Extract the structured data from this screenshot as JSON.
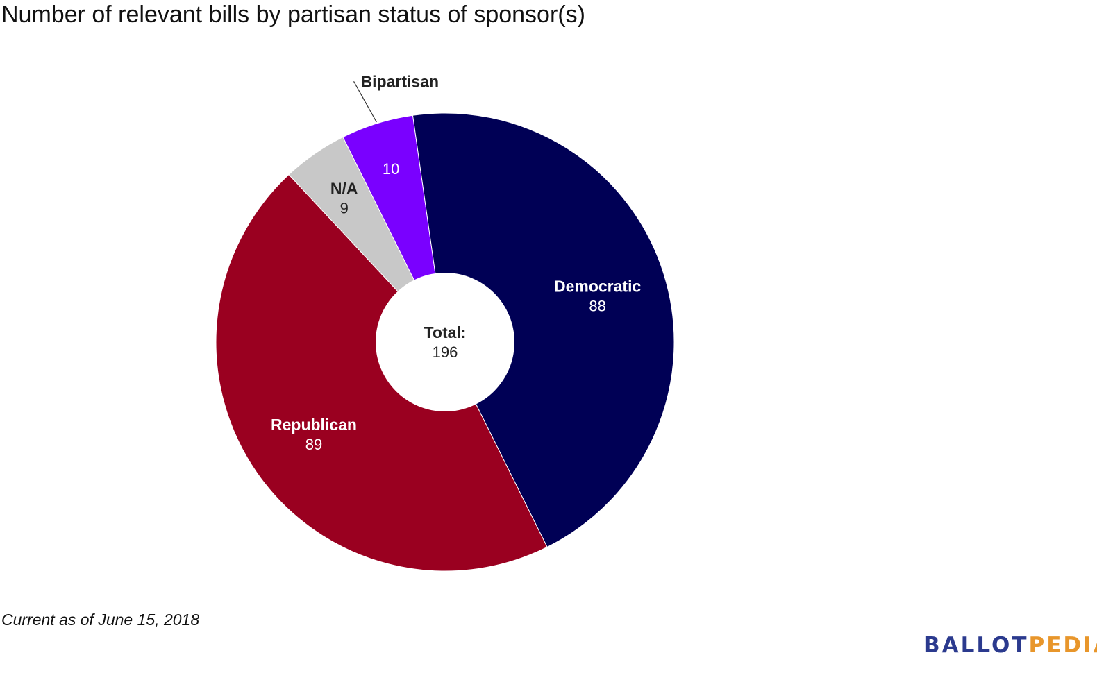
{
  "title": "Number of relevant bills by partisan status of sponsor(s)",
  "footnote": "Current as of June 15, 2018",
  "logo": {
    "part1": "BALLOT",
    "part2": "PEDIA"
  },
  "colors": {
    "republican": "#9a0020",
    "na": "#c8c8c8",
    "bipartisan": "#7a00ff",
    "democratic": "#000055"
  },
  "chart_data": {
    "type": "pie",
    "donut": true,
    "title": "Number of relevant bills by partisan status of sponsor(s)",
    "center_label": {
      "title": "Total:",
      "value": "196"
    },
    "slices": [
      {
        "name": "N/A",
        "value": 9,
        "color": "#c8c8c8",
        "value_label": "9",
        "label_inside": true
      },
      {
        "name": "Bipartisan",
        "value": 10,
        "color": "#7a00ff",
        "value_label": "10",
        "label_inside": false
      },
      {
        "name": "Democratic",
        "value": 88,
        "color": "#000055",
        "value_label": "88",
        "label_inside": true
      },
      {
        "name": "Republican",
        "value": 89,
        "color": "#9a0020",
        "value_label": "89",
        "label_inside": true
      }
    ]
  }
}
